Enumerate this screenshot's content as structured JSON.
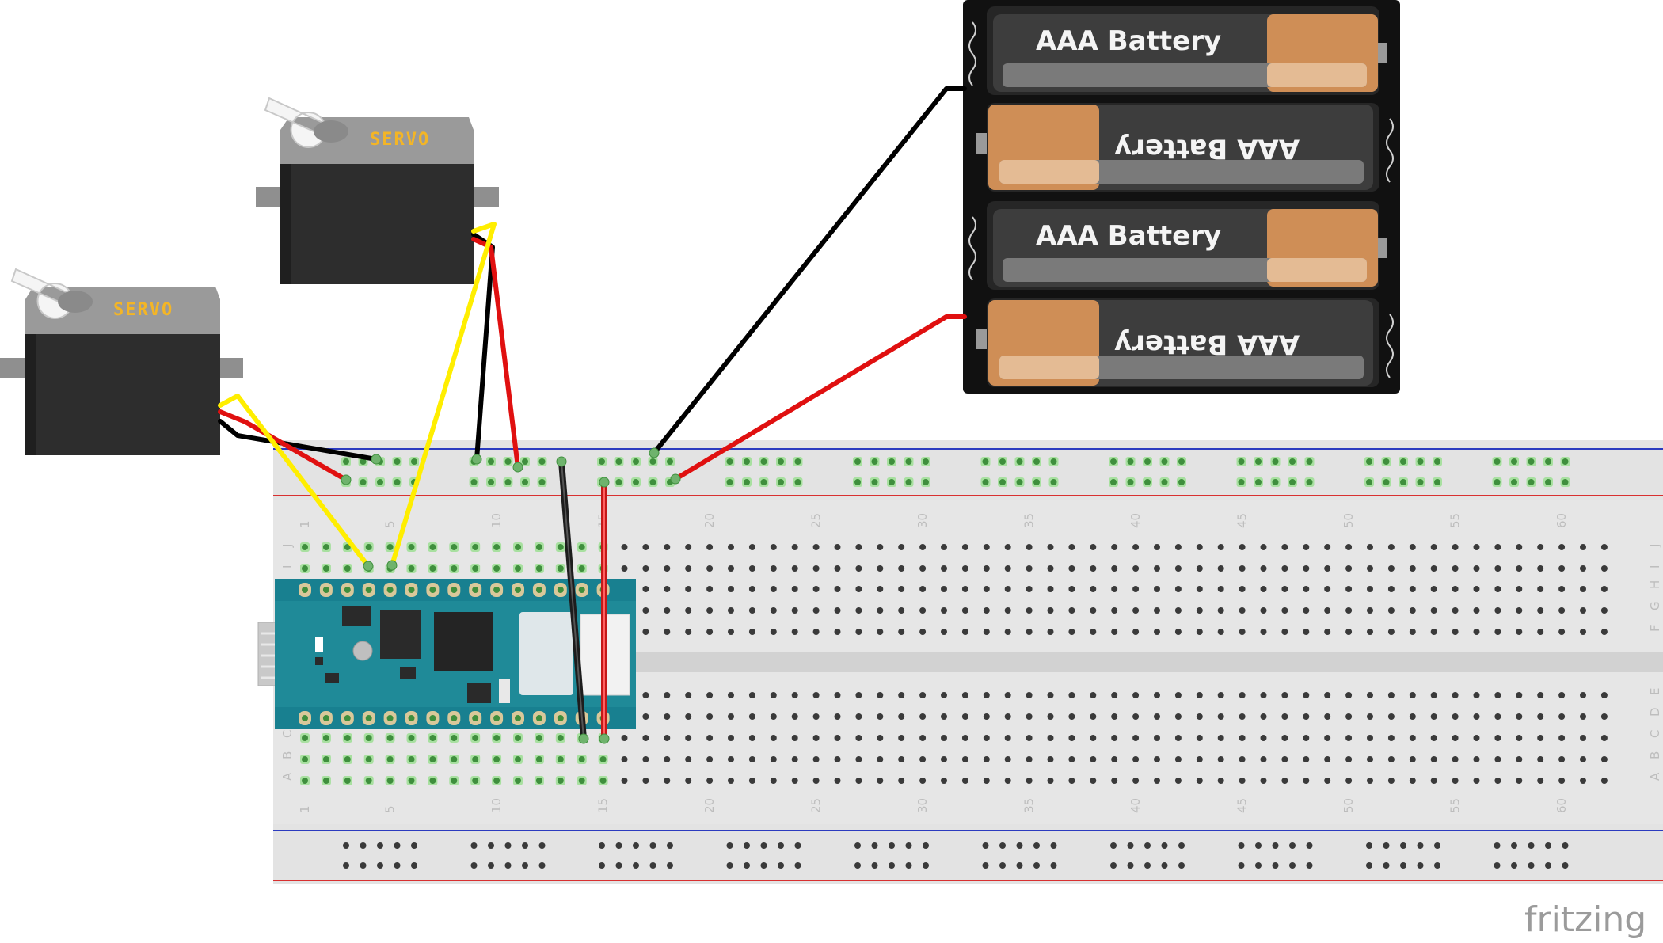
{
  "breadboard": {
    "column_labels": [
      "1",
      "5",
      "10",
      "15",
      "20",
      "25",
      "30",
      "35",
      "40",
      "45",
      "50",
      "55",
      "60"
    ],
    "row_labels_top": [
      "J",
      "I",
      "H",
      "G",
      "F"
    ],
    "row_labels_bottom": [
      "E",
      "D",
      "C",
      "B",
      "A"
    ],
    "colors": {
      "board": "#e6e6e6",
      "rail_blue": "#2b3bbf",
      "rail_red": "#d83030",
      "hole": "#3a3a3a",
      "hole_active": "#6cc36a"
    }
  },
  "servos": [
    {
      "label": "SERVO"
    },
    {
      "label": "SERVO"
    }
  ],
  "battery_pack": {
    "cells": [
      {
        "label": "AAA Battery",
        "flipped": false
      },
      {
        "label": "AAA Battery",
        "flipped": true
      },
      {
        "label": "AAA Battery",
        "flipped": false
      },
      {
        "label": "AAA Battery",
        "flipped": true
      }
    ]
  },
  "microcontroller": {
    "board_color": "#1f8a98"
  },
  "wires": [
    {
      "name": "servo1-signal",
      "color": "#ffee00"
    },
    {
      "name": "servo1-power",
      "color": "#e01010"
    },
    {
      "name": "servo1-ground",
      "color": "#000000"
    },
    {
      "name": "servo2-signal",
      "color": "#ffee00"
    },
    {
      "name": "servo2-power",
      "color": "#e01010"
    },
    {
      "name": "servo2-ground",
      "color": "#000000"
    },
    {
      "name": "battery-negative",
      "color": "#000000"
    },
    {
      "name": "battery-positive",
      "color": "#e01010"
    },
    {
      "name": "board-ground-jumper",
      "color": "#000000"
    },
    {
      "name": "board-power-jumper",
      "color": "#c41818"
    }
  ],
  "branding": {
    "text": "fritzing"
  }
}
